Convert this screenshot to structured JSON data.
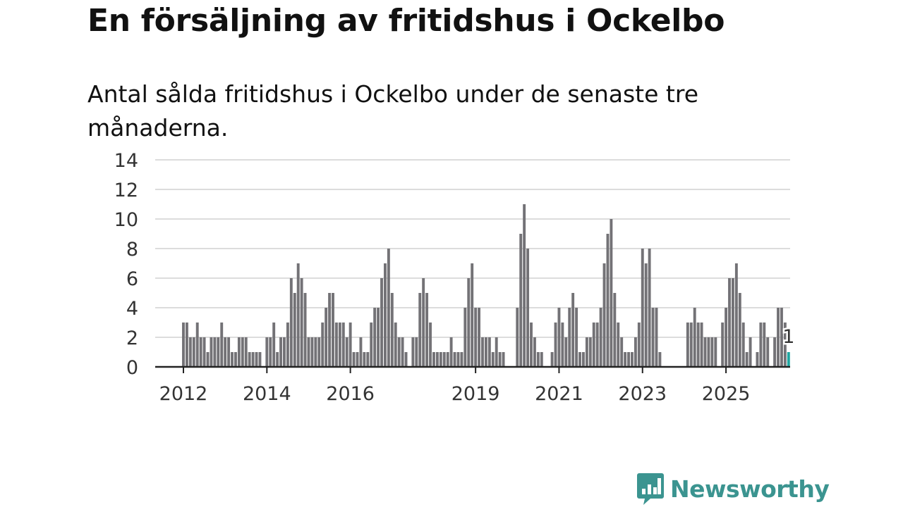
{
  "headline": "En försäljning av fritidshus i Ockelbo",
  "subtitle": "Antal sålda fritidshus i Ockelbo under de senaste tre månaderna.",
  "chart_data": {
    "type": "bar",
    "title": "En försäljning av fritidshus i Ockelbo",
    "subtitle": "Antal sålda fritidshus i Ockelbo under de senaste tre månaderna.",
    "xlabel": "",
    "ylabel": "",
    "ylim": [
      0,
      14
    ],
    "yticks": [
      0,
      2,
      4,
      6,
      8,
      10,
      12,
      14
    ],
    "grid": true,
    "legend": "none",
    "x_start": "2012-01",
    "x_tick_labels": [
      "2012",
      "2014",
      "2016",
      "2019",
      "2021",
      "2023",
      "2025"
    ],
    "x_tick_months": [
      0,
      24,
      48,
      84,
      108,
      132,
      156
    ],
    "colors": {
      "bar": "#737276",
      "highlight": "#1fa6a1",
      "grid": "#dcdcdc",
      "axis": "#222222"
    },
    "highlight_label": "1",
    "values": [
      3,
      3,
      2,
      2,
      3,
      2,
      2,
      1,
      2,
      2,
      2,
      3,
      2,
      2,
      1,
      1,
      2,
      2,
      2,
      1,
      1,
      1,
      1,
      0,
      2,
      2,
      3,
      1,
      2,
      2,
      3,
      6,
      5,
      7,
      6,
      5,
      2,
      2,
      2,
      2,
      3,
      4,
      5,
      5,
      3,
      3,
      3,
      2,
      3,
      1,
      1,
      2,
      1,
      1,
      3,
      4,
      4,
      6,
      7,
      8,
      5,
      3,
      2,
      2,
      1,
      0,
      2,
      2,
      5,
      6,
      5,
      3,
      1,
      1,
      1,
      1,
      1,
      2,
      1,
      1,
      1,
      4,
      6,
      7,
      4,
      4,
      2,
      2,
      2,
      1,
      2,
      1,
      1,
      0,
      0,
      0,
      4,
      9,
      11,
      8,
      3,
      2,
      1,
      1,
      0,
      0,
      1,
      3,
      4,
      3,
      2,
      4,
      5,
      4,
      1,
      1,
      2,
      2,
      3,
      3,
      4,
      7,
      9,
      10,
      5,
      3,
      2,
      1,
      1,
      1,
      2,
      3,
      8,
      7,
      8,
      4,
      4,
      1,
      0,
      0,
      0,
      0,
      0,
      0,
      0,
      3,
      3,
      4,
      3,
      3,
      2,
      2,
      2,
      2,
      0,
      3,
      4,
      6,
      6,
      7,
      5,
      3,
      1,
      2,
      0,
      1,
      3,
      3,
      2,
      0,
      2,
      4,
      4,
      3,
      1
    ]
  },
  "logo": {
    "text": "Newsworthy",
    "icon": "newsworthy-chart-bubble-icon",
    "color": "#3b9490"
  }
}
